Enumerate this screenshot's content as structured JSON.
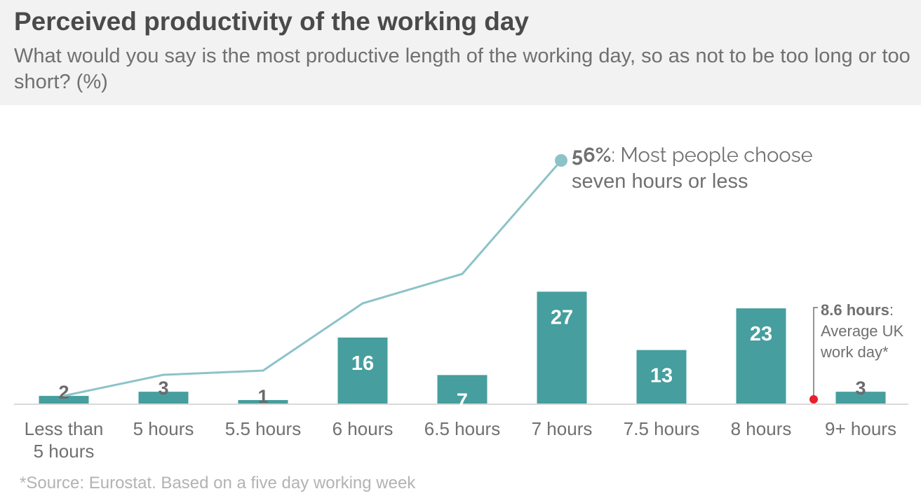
{
  "title": "Perceived productivity of the working day",
  "subtitle": "What would you say is the most productive length of the working day, so as not to be too long or too short? (%)",
  "footnote": "*Source: Eurostat. Based on a five day working week",
  "colors": {
    "bar": "#469e9e",
    "line": "#8cc3c8",
    "marker": "#e8202a",
    "axis": "#d9d9d9",
    "text": "#707070",
    "label_dark": "#6b6b6b"
  },
  "annotations": {
    "cumulative": {
      "bold": "56%",
      "rest_line1": ": Most people choose",
      "line2": "seven hours or less"
    },
    "average": {
      "bold": "8.6 hours",
      "colon": ":",
      "line2": "Average UK",
      "line3": "work day*"
    }
  },
  "chart_data": {
    "type": "bar",
    "categories": [
      "Less than 5 hours",
      "5 hours",
      "5.5 hours",
      "6 hours",
      "6.5 hours",
      "7 hours",
      "7.5 hours",
      "8 hours",
      "9+ hours"
    ],
    "category_lines": [
      [
        "Less than",
        "5 hours"
      ],
      [
        "5 hours"
      ],
      [
        "5.5 hours"
      ],
      [
        "6 hours"
      ],
      [
        "6.5 hours"
      ],
      [
        "7 hours"
      ],
      [
        "7.5 hours"
      ],
      [
        "8 hours"
      ],
      [
        "9+ hours"
      ]
    ],
    "values": [
      2,
      3,
      1,
      16,
      7,
      27,
      13,
      23,
      3
    ],
    "value_labels": [
      "2",
      "3",
      "1",
      "16",
      "7",
      "27",
      "13",
      "23",
      "3"
    ],
    "cumulative_line": {
      "values": [
        2,
        5,
        6,
        22,
        29,
        56
      ],
      "end_category": "7 hours"
    },
    "marker": {
      "value": 8.6,
      "label": "8.6 hours"
    },
    "ylim": [
      0,
      60
    ],
    "grid": false,
    "legend": "none"
  }
}
